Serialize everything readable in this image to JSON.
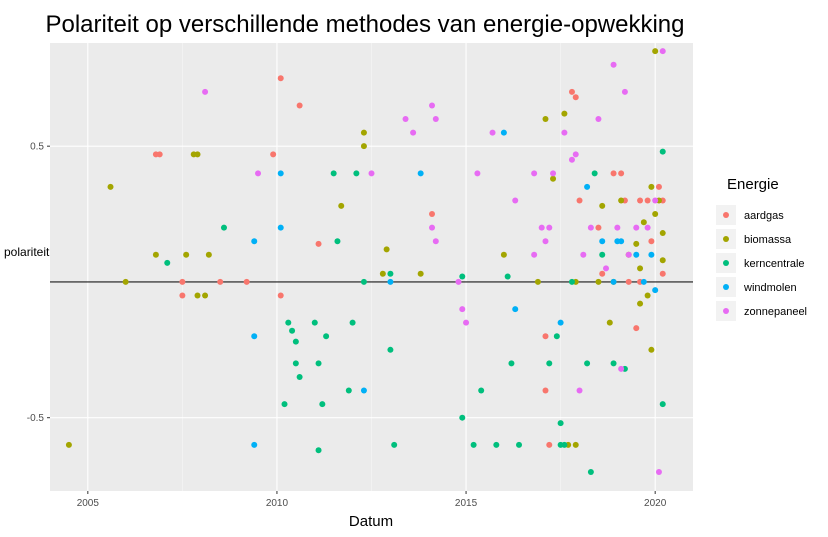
{
  "chart_data": {
    "type": "scatter",
    "title": "Polariteit op verschillende methodes van energie-opwekking",
    "xlabel": "Datum",
    "ylabel": "polariteit",
    "xlim": [
      2004.0,
      2021.0
    ],
    "ylim": [
      -0.77,
      0.88
    ],
    "x_ticks": [
      2005,
      2010,
      2015,
      2020
    ],
    "y_ticks": [
      -0.5,
      0.5
    ],
    "hline": 0,
    "grid": true,
    "legend": {
      "title": "Energie",
      "placement": "right",
      "entries": [
        "aardgas",
        "biomassa",
        "kerncentrale",
        "windmolen",
        "zonnepaneel"
      ]
    },
    "series": [
      {
        "name": "aardgas",
        "color": "#F8766D",
        "points": [
          [
            2006.8,
            0.47
          ],
          [
            2006.9,
            0.47
          ],
          [
            2007.5,
            -0.05
          ],
          [
            2007.5,
            0.0
          ],
          [
            2008.5,
            0.0
          ],
          [
            2009.2,
            0.0
          ],
          [
            2009.9,
            0.47
          ],
          [
            2010.1,
            0.75
          ],
          [
            2010.1,
            -0.05
          ],
          [
            2010.6,
            0.65
          ],
          [
            2011.1,
            0.14
          ],
          [
            2014.1,
            0.25
          ],
          [
            2017.1,
            -0.2
          ],
          [
            2017.1,
            -0.4
          ],
          [
            2017.2,
            -0.6
          ],
          [
            2017.8,
            0.7
          ],
          [
            2017.9,
            0.68
          ],
          [
            2018.0,
            0.3
          ],
          [
            2018.5,
            0.2
          ],
          [
            2018.6,
            0.03
          ],
          [
            2018.9,
            0.4
          ],
          [
            2019.1,
            0.4
          ],
          [
            2019.2,
            0.3
          ],
          [
            2019.3,
            0.0
          ],
          [
            2019.5,
            -0.17
          ],
          [
            2019.6,
            0.0
          ],
          [
            2019.6,
            0.3
          ],
          [
            2019.8,
            0.3
          ],
          [
            2019.9,
            0.15
          ],
          [
            2020.1,
            0.35
          ],
          [
            2020.2,
            0.03
          ],
          [
            2020.2,
            0.3
          ]
        ]
      },
      {
        "name": "biomassa",
        "color": "#A3A500",
        "points": [
          [
            2004.5,
            -0.6
          ],
          [
            2005.6,
            0.35
          ],
          [
            2006.0,
            0.0
          ],
          [
            2006.8,
            0.1
          ],
          [
            2007.6,
            0.1
          ],
          [
            2007.8,
            0.47
          ],
          [
            2007.9,
            -0.05
          ],
          [
            2007.9,
            0.47
          ],
          [
            2008.1,
            -0.05
          ],
          [
            2008.2,
            0.1
          ],
          [
            2011.7,
            0.28
          ],
          [
            2012.3,
            0.55
          ],
          [
            2012.3,
            0.5
          ],
          [
            2012.8,
            0.03
          ],
          [
            2012.9,
            0.12
          ],
          [
            2013.8,
            0.03
          ],
          [
            2016.0,
            0.1
          ],
          [
            2016.9,
            0.0
          ],
          [
            2017.1,
            0.6
          ],
          [
            2017.3,
            0.38
          ],
          [
            2017.6,
            0.62
          ],
          [
            2017.7,
            -0.6
          ],
          [
            2017.9,
            0.0
          ],
          [
            2017.9,
            -0.6
          ],
          [
            2018.5,
            0.0
          ],
          [
            2018.6,
            0.28
          ],
          [
            2018.8,
            -0.15
          ],
          [
            2018.9,
            0.0
          ],
          [
            2019.1,
            0.3
          ],
          [
            2019.3,
            0.1
          ],
          [
            2019.5,
            0.14
          ],
          [
            2019.6,
            -0.08
          ],
          [
            2019.6,
            0.05
          ],
          [
            2019.7,
            0.22
          ],
          [
            2019.8,
            -0.05
          ],
          [
            2019.9,
            -0.25
          ],
          [
            2019.9,
            0.35
          ],
          [
            2020.0,
            0.85
          ],
          [
            2020.0,
            0.25
          ],
          [
            2020.1,
            0.3
          ],
          [
            2020.2,
            0.18
          ],
          [
            2020.2,
            0.08
          ]
        ]
      },
      {
        "name": "kerncentrale",
        "color": "#00BF7D",
        "points": [
          [
            2007.1,
            0.07
          ],
          [
            2008.6,
            0.2
          ],
          [
            2010.2,
            -0.45
          ],
          [
            2010.3,
            -0.15
          ],
          [
            2010.4,
            -0.18
          ],
          [
            2010.5,
            -0.22
          ],
          [
            2010.5,
            -0.3
          ],
          [
            2010.6,
            -0.35
          ],
          [
            2011.0,
            -0.15
          ],
          [
            2011.1,
            -0.3
          ],
          [
            2011.1,
            -0.62
          ],
          [
            2011.2,
            -0.45
          ],
          [
            2011.3,
            -0.2
          ],
          [
            2011.5,
            0.4
          ],
          [
            2011.6,
            0.15
          ],
          [
            2011.9,
            -0.4
          ],
          [
            2012.0,
            -0.15
          ],
          [
            2012.1,
            0.4
          ],
          [
            2012.3,
            0.0
          ],
          [
            2013.0,
            0.03
          ],
          [
            2013.0,
            -0.25
          ],
          [
            2013.1,
            -0.6
          ],
          [
            2014.9,
            -0.5
          ],
          [
            2014.9,
            0.02
          ],
          [
            2015.2,
            -0.6
          ],
          [
            2015.4,
            -0.4
          ],
          [
            2015.8,
            -0.6
          ],
          [
            2016.1,
            0.02
          ],
          [
            2016.2,
            -0.3
          ],
          [
            2016.4,
            -0.6
          ],
          [
            2017.2,
            -0.3
          ],
          [
            2017.4,
            -0.2
          ],
          [
            2017.5,
            -0.52
          ],
          [
            2017.5,
            -0.6
          ],
          [
            2017.6,
            -0.6
          ],
          [
            2017.8,
            0.0
          ],
          [
            2018.2,
            -0.3
          ],
          [
            2018.3,
            -0.7
          ],
          [
            2018.4,
            0.4
          ],
          [
            2018.6,
            0.1
          ],
          [
            2018.9,
            -0.3
          ],
          [
            2019.2,
            -0.32
          ],
          [
            2020.2,
            0.48
          ],
          [
            2020.2,
            -0.45
          ]
        ]
      },
      {
        "name": "windmolen",
        "color": "#00B0F6",
        "points": [
          [
            2009.4,
            0.15
          ],
          [
            2009.4,
            -0.2
          ],
          [
            2009.4,
            -0.6
          ],
          [
            2010.1,
            0.4
          ],
          [
            2010.1,
            0.2
          ],
          [
            2012.3,
            -0.4
          ],
          [
            2013.0,
            0.0
          ],
          [
            2013.8,
            0.4
          ],
          [
            2016.0,
            0.55
          ],
          [
            2016.3,
            -0.1
          ],
          [
            2017.5,
            -0.15
          ],
          [
            2018.2,
            0.35
          ],
          [
            2018.6,
            0.15
          ],
          [
            2018.9,
            0.0
          ],
          [
            2019.0,
            0.15
          ],
          [
            2019.1,
            0.15
          ],
          [
            2019.5,
            0.1
          ],
          [
            2019.7,
            0.0
          ],
          [
            2019.9,
            0.1
          ],
          [
            2020.0,
            -0.03
          ]
        ]
      },
      {
        "name": "zonnepaneel",
        "color": "#E76BF3",
        "points": [
          [
            2008.1,
            0.7
          ],
          [
            2009.5,
            0.4
          ],
          [
            2012.5,
            0.4
          ],
          [
            2013.4,
            0.6
          ],
          [
            2013.6,
            0.55
          ],
          [
            2014.1,
            0.65
          ],
          [
            2014.2,
            0.6
          ],
          [
            2014.1,
            0.2
          ],
          [
            2014.2,
            0.15
          ],
          [
            2014.8,
            0.0
          ],
          [
            2014.9,
            -0.1
          ],
          [
            2015.0,
            -0.15
          ],
          [
            2015.3,
            0.4
          ],
          [
            2015.7,
            0.55
          ],
          [
            2016.3,
            0.3
          ],
          [
            2016.8,
            0.1
          ],
          [
            2016.8,
            0.4
          ],
          [
            2017.0,
            0.2
          ],
          [
            2017.1,
            0.15
          ],
          [
            2017.2,
            0.2
          ],
          [
            2017.3,
            0.4
          ],
          [
            2017.6,
            0.55
          ],
          [
            2017.8,
            0.45
          ],
          [
            2017.9,
            0.47
          ],
          [
            2018.0,
            -0.4
          ],
          [
            2018.1,
            0.1
          ],
          [
            2018.3,
            0.2
          ],
          [
            2018.5,
            0.6
          ],
          [
            2018.7,
            0.05
          ],
          [
            2018.9,
            0.8
          ],
          [
            2019.0,
            0.2
          ],
          [
            2019.2,
            0.7
          ],
          [
            2019.1,
            -0.32
          ],
          [
            2019.3,
            0.1
          ],
          [
            2019.5,
            0.2
          ],
          [
            2019.8,
            0.2
          ],
          [
            2020.0,
            0.3
          ],
          [
            2020.1,
            -0.7
          ],
          [
            2020.2,
            0.85
          ]
        ]
      }
    ]
  }
}
